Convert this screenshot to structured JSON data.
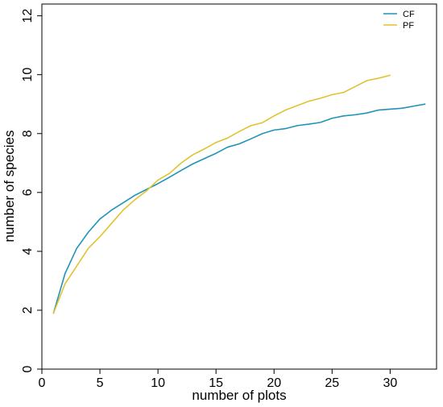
{
  "chart_data": {
    "type": "line",
    "xlabel": "number of plots",
    "ylabel": "number of species",
    "xlim": [
      0,
      34
    ],
    "ylim": [
      0,
      12.4
    ],
    "xticks": [
      0,
      5,
      10,
      15,
      20,
      25,
      30
    ],
    "yticks": [
      0,
      2,
      4,
      6,
      8,
      10,
      12
    ],
    "legend_position": "top-right",
    "grid": false,
    "series": [
      {
        "name": "CF",
        "color": "#1f94b9",
        "x": [
          1,
          2,
          3,
          4,
          5,
          6,
          7,
          8,
          9,
          10,
          11,
          12,
          13,
          14,
          15,
          16,
          17,
          18,
          19,
          20,
          21,
          22,
          23,
          24,
          25,
          26,
          27,
          28,
          29,
          30,
          31,
          32,
          33
        ],
        "values": [
          1.9,
          3.25,
          4.1,
          4.65,
          5.1,
          5.4,
          5.65,
          5.9,
          6.1,
          6.3,
          6.52,
          6.75,
          6.97,
          7.15,
          7.33,
          7.54,
          7.65,
          7.82,
          8.0,
          8.12,
          8.17,
          8.27,
          8.32,
          8.38,
          8.52,
          8.6,
          8.64,
          8.7,
          8.8,
          8.83,
          8.86,
          8.93,
          9.0
        ]
      },
      {
        "name": "PF",
        "color": "#e2c231",
        "x": [
          1,
          2,
          3,
          4,
          5,
          6,
          7,
          8,
          9,
          10,
          11,
          12,
          13,
          14,
          15,
          16,
          17,
          18,
          19,
          20,
          21,
          22,
          23,
          24,
          25,
          26,
          27,
          28,
          29,
          30
        ],
        "values": [
          1.9,
          2.9,
          3.5,
          4.1,
          4.5,
          4.95,
          5.4,
          5.75,
          6.05,
          6.42,
          6.65,
          7.0,
          7.28,
          7.48,
          7.7,
          7.85,
          8.07,
          8.27,
          8.37,
          8.6,
          8.8,
          8.95,
          9.1,
          9.2,
          9.32,
          9.4,
          9.6,
          9.8,
          9.88,
          9.98
        ]
      }
    ]
  }
}
